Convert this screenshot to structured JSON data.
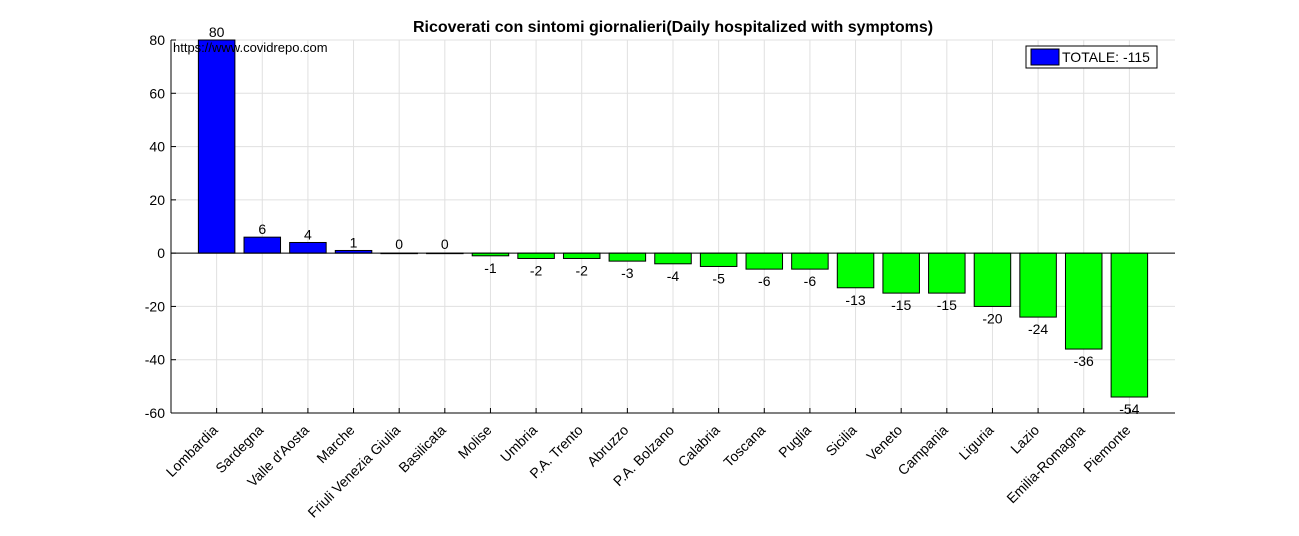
{
  "chart_data": {
    "type": "bar",
    "title": "Ricoverati con sintomi giornalieri(Daily hospitalized with symptoms)",
    "source_label": "https://www.covidrepo.com",
    "categories": [
      "Lombardia",
      "Sardegna",
      "Valle d'Aosta",
      "Marche",
      "Friuli Venezia Giulia",
      "Basilicata",
      "Molise",
      "Umbria",
      "P.A. Trento",
      "Abruzzo",
      "P.A. Bolzano",
      "Calabria",
      "Toscana",
      "Puglia",
      "Sicilia",
      "Veneto",
      "Campania",
      "Liguria",
      "Lazio",
      "Emilia-Romagna",
      "Piemonte"
    ],
    "values": [
      80,
      6,
      4,
      1,
      0,
      0,
      -1,
      -2,
      -2,
      -3,
      -4,
      -5,
      -6,
      -6,
      -13,
      -15,
      -15,
      -20,
      -24,
      -36,
      -54
    ],
    "ylim": [
      -60,
      80
    ],
    "yticks": [
      -60,
      -40,
      -20,
      0,
      20,
      40,
      60,
      80
    ],
    "grid": true,
    "legend": {
      "label": "TOTALE: -115",
      "position": "top-right",
      "color": "#0000ff"
    },
    "colors": {
      "positive": "#0000ff",
      "negative": "#00ff00"
    }
  }
}
